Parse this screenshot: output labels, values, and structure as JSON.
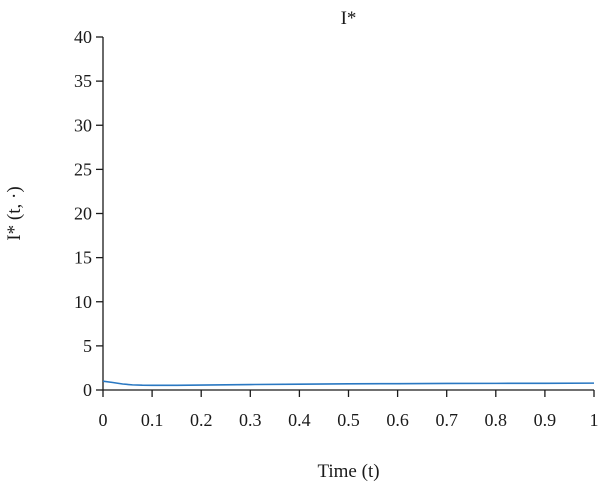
{
  "chart_data": {
    "type": "line",
    "title": "I*",
    "xlabel": "Time (t)",
    "ylabel": "I* (t, ·)",
    "xlim": [
      0,
      1
    ],
    "ylim": [
      0,
      40
    ],
    "x_ticks": [
      0,
      0.1,
      0.2,
      0.3,
      0.4,
      0.5,
      0.6,
      0.7,
      0.8,
      0.9,
      1
    ],
    "y_ticks": [
      0,
      5,
      10,
      15,
      20,
      25,
      30,
      35,
      40
    ],
    "x_tick_labels": [
      "0",
      "0.1",
      "0.2",
      "0.3",
      "0.4",
      "0.5",
      "0.6",
      "0.7",
      "0.8",
      "0.9",
      "1"
    ],
    "y_tick_labels": [
      "0",
      "5",
      "10",
      "15",
      "20",
      "25",
      "30",
      "35",
      "40"
    ],
    "grid": false,
    "series": [
      {
        "color": "#2a78c2",
        "x": [
          0,
          0.02,
          0.04,
          0.06,
          0.08,
          0.1,
          0.15,
          0.2,
          0.3,
          0.4,
          0.5,
          0.6,
          0.7,
          0.8,
          0.9,
          1.0
        ],
        "y": [
          1.0,
          0.85,
          0.68,
          0.58,
          0.54,
          0.53,
          0.53,
          0.56,
          0.62,
          0.66,
          0.7,
          0.72,
          0.74,
          0.75,
          0.76,
          0.78
        ]
      }
    ]
  }
}
